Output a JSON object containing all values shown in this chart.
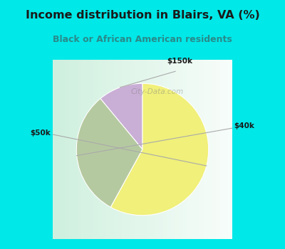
{
  "title": "Income distribution in Blairs, VA (%)",
  "subtitle": "Black or African American residents",
  "slices": [
    {
      "label": "$150k",
      "value": 11,
      "color": "#c9aed6"
    },
    {
      "label": "$40k",
      "value": 31,
      "color": "#b5c9a0"
    },
    {
      "label": "$50k",
      "value": 58,
      "color": "#f0f07a"
    }
  ],
  "startangle": 90,
  "background_color": "#00e8e8",
  "title_color": "#1a1a1a",
  "subtitle_color": "#2a8a8a",
  "label_color": "#1a1a1a",
  "watermark": "City-Data.com"
}
